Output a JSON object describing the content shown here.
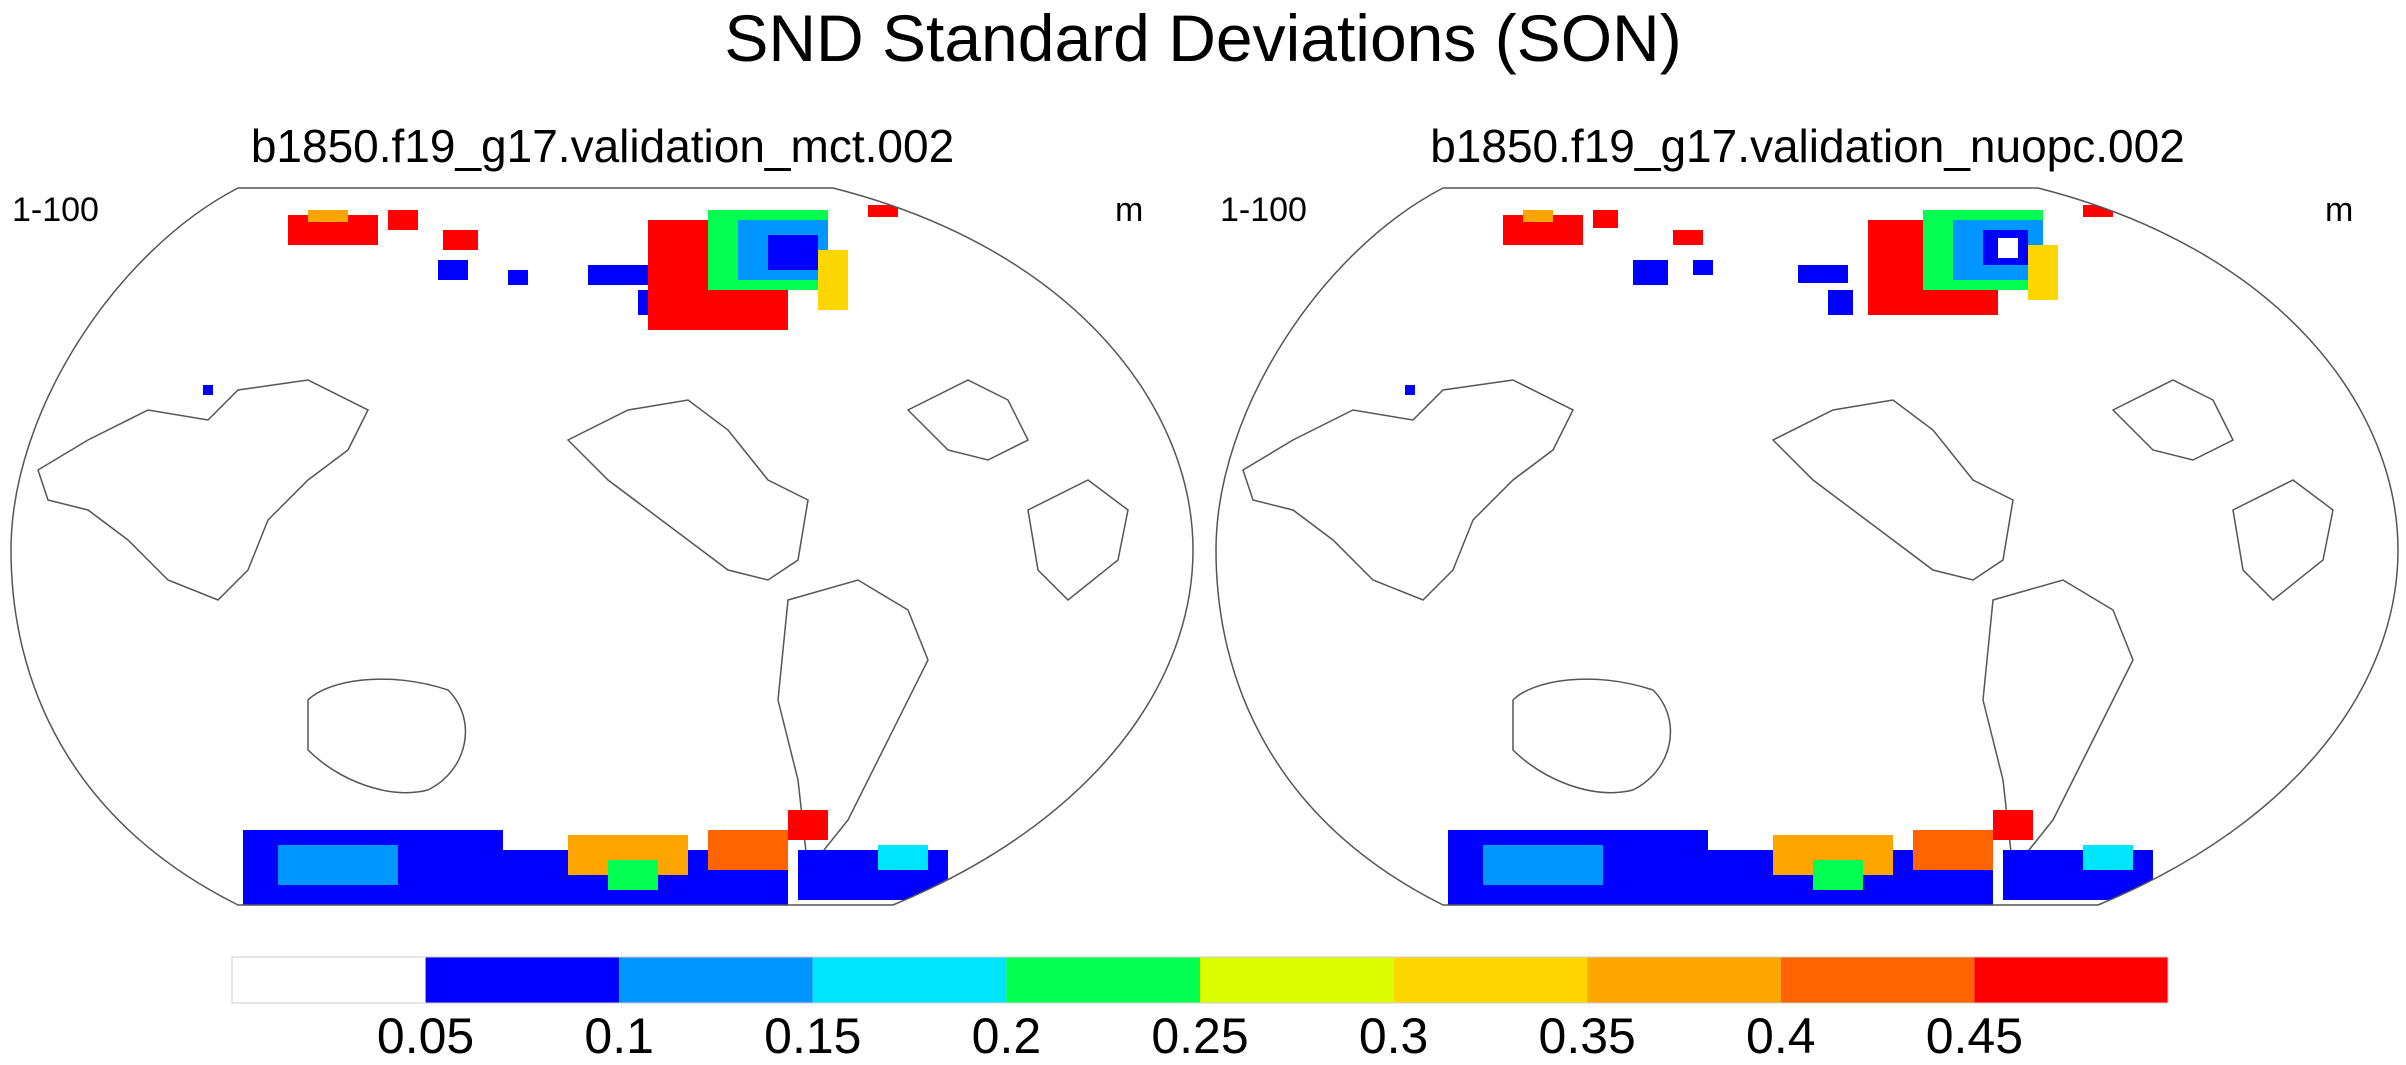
{
  "figure": {
    "title": "SND Standard Deviations (SON)"
  },
  "panels": [
    {
      "title": "b1850.f19_g17.validation_mct.002",
      "left_label": "1-100",
      "right_label": "m"
    },
    {
      "title": "b1850.f19_g17.validation_nuopc.002",
      "left_label": "1-100",
      "right_label": "m"
    }
  ],
  "colorbar": {
    "levels": [
      "0.05",
      "0.1",
      "0.15",
      "0.2",
      "0.25",
      "0.3",
      "0.35",
      "0.4",
      "0.45"
    ],
    "colors": [
      "#ffffff",
      "#0000ff",
      "#0096ff",
      "#00e5ff",
      "#00ff50",
      "#dcff00",
      "#ffd700",
      "#ffa500",
      "#ff6400",
      "#ff0000"
    ]
  }
}
